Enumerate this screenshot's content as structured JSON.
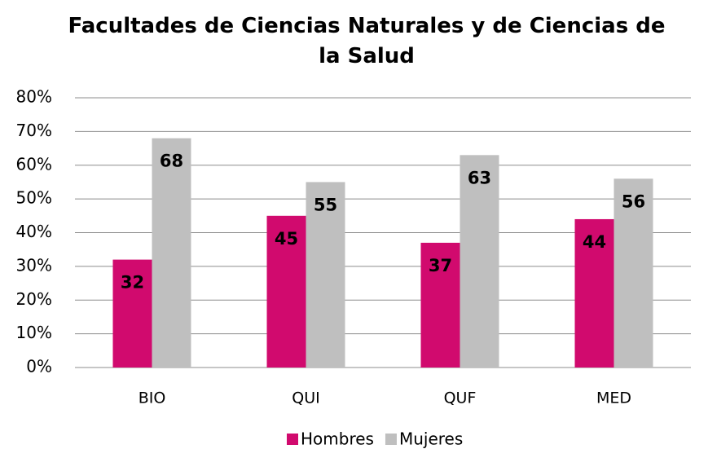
{
  "chart_data": {
    "type": "bar",
    "title": "Facultades de Ciencias Naturales y de Ciencias de la Salud",
    "categories": [
      "BIO",
      "QUI",
      "QUF",
      "MED"
    ],
    "series": [
      {
        "name": "Hombres",
        "color": "#d10a6e",
        "values": [
          32,
          45,
          37,
          44
        ]
      },
      {
        "name": "Mujeres",
        "color": "#bfbfbf",
        "values": [
          68,
          55,
          63,
          56
        ]
      }
    ],
    "ylim": [
      0,
      80
    ],
    "yticks": [
      {
        "value": 0,
        "label": "0%"
      },
      {
        "value": 10,
        "label": "10%"
      },
      {
        "value": 20,
        "label": "20%"
      },
      {
        "value": 30,
        "label": "30%"
      },
      {
        "value": 40,
        "label": "40%"
      },
      {
        "value": 50,
        "label": "50%"
      },
      {
        "value": 60,
        "label": "60%"
      },
      {
        "value": 70,
        "label": "70%"
      },
      {
        "value": 80,
        "label": "80%"
      }
    ],
    "grid": true,
    "legend": "bottom"
  }
}
